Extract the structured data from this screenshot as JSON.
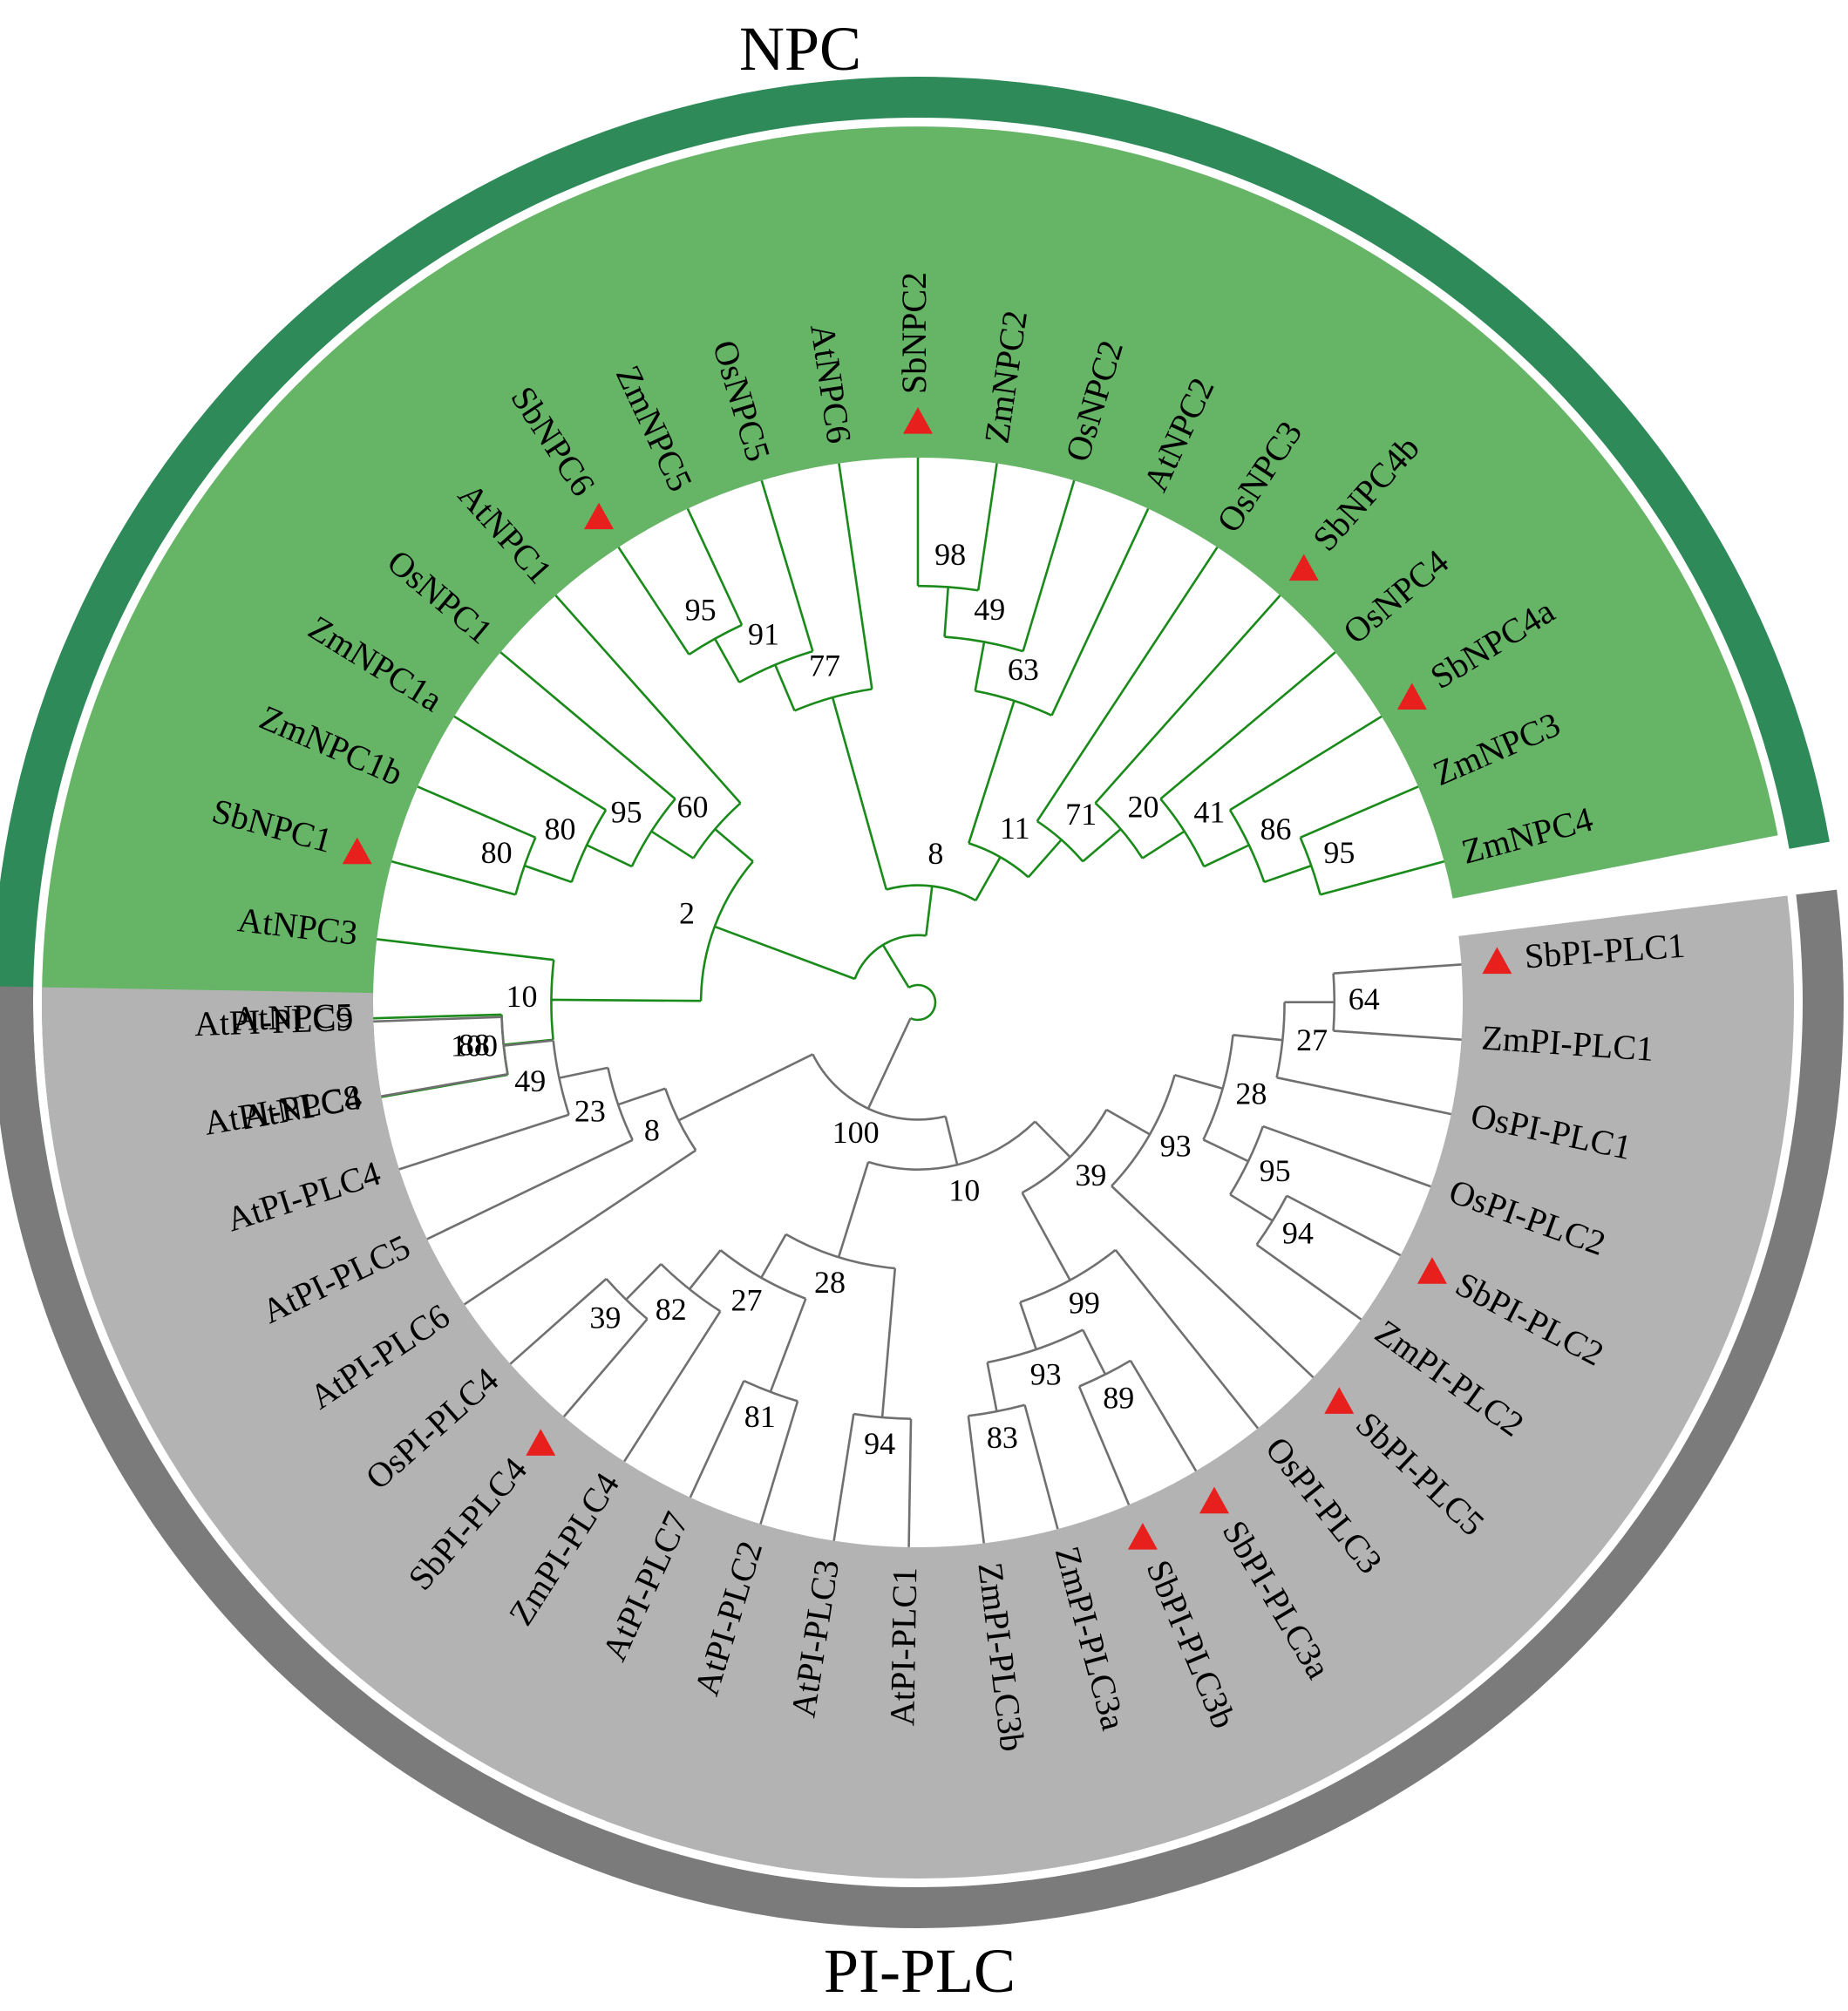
{
  "clades": [
    {
      "id": "npc",
      "title": "NPC",
      "fill": "#66b567",
      "band": "#2e8a59",
      "branch": "#1a8a1a"
    },
    {
      "id": "piplc",
      "title": "PI-PLC",
      "fill": "#b3b3b3",
      "band": "#7b7b7b",
      "branch": "#707070"
    }
  ],
  "marker_color": "#e8201d",
  "leaves": [
    {
      "label": "AtNPC4",
      "clade": "npc",
      "marked": false
    },
    {
      "label": "AtNPC5",
      "clade": "npc",
      "marked": false
    },
    {
      "label": "AtNPC3",
      "clade": "npc",
      "marked": false
    },
    {
      "label": "SbNPC1",
      "clade": "npc",
      "marked": true
    },
    {
      "label": "ZmNPC1b",
      "clade": "npc",
      "marked": false
    },
    {
      "label": "ZmNPC1a",
      "clade": "npc",
      "marked": false
    },
    {
      "label": "OsNPC1",
      "clade": "npc",
      "marked": false
    },
    {
      "label": "AtNPC1",
      "clade": "npc",
      "marked": false
    },
    {
      "label": "SbNPC6",
      "clade": "npc",
      "marked": true
    },
    {
      "label": "ZmNPC5",
      "clade": "npc",
      "marked": false
    },
    {
      "label": "OsNPC5",
      "clade": "npc",
      "marked": false
    },
    {
      "label": "AtNPC6",
      "clade": "npc",
      "marked": false
    },
    {
      "label": "SbNPC2",
      "clade": "npc",
      "marked": true
    },
    {
      "label": "ZmNPC2",
      "clade": "npc",
      "marked": false
    },
    {
      "label": "OsNPC2",
      "clade": "npc",
      "marked": false
    },
    {
      "label": "AtNPC2",
      "clade": "npc",
      "marked": false
    },
    {
      "label": "OsNPC3",
      "clade": "npc",
      "marked": false
    },
    {
      "label": "SbNPC4b",
      "clade": "npc",
      "marked": true
    },
    {
      "label": "OsNPC4",
      "clade": "npc",
      "marked": false
    },
    {
      "label": "SbNPC4a",
      "clade": "npc",
      "marked": true
    },
    {
      "label": "ZmNPC3",
      "clade": "npc",
      "marked": false
    },
    {
      "label": "ZmNPC4",
      "clade": "npc",
      "marked": false
    },
    {
      "label": "SbPI-PLC1",
      "clade": "piplc",
      "marked": true
    },
    {
      "label": "ZmPI-PLC1",
      "clade": "piplc",
      "marked": false
    },
    {
      "label": "OsPI-PLC1",
      "clade": "piplc",
      "marked": false
    },
    {
      "label": "OsPI-PLC2",
      "clade": "piplc",
      "marked": false
    },
    {
      "label": "SbPI-PLC2",
      "clade": "piplc",
      "marked": true
    },
    {
      "label": "ZmPI-PLC2",
      "clade": "piplc",
      "marked": false
    },
    {
      "label": "SbPI-PLC5",
      "clade": "piplc",
      "marked": true
    },
    {
      "label": "OsPI-PLC3",
      "clade": "piplc",
      "marked": false
    },
    {
      "label": "SbPI-PLC3a",
      "clade": "piplc",
      "marked": true
    },
    {
      "label": "SbPI-PLC3b",
      "clade": "piplc",
      "marked": true
    },
    {
      "label": "ZmPI-PLC3a",
      "clade": "piplc",
      "marked": false
    },
    {
      "label": "ZmPI-PLC3b",
      "clade": "piplc",
      "marked": false
    },
    {
      "label": "AtPI-PLC1",
      "clade": "piplc",
      "marked": false
    },
    {
      "label": "AtPI-PLC3",
      "clade": "piplc",
      "marked": false
    },
    {
      "label": "AtPI-PLC2",
      "clade": "piplc",
      "marked": false
    },
    {
      "label": "AtPI-PLC7",
      "clade": "piplc",
      "marked": false
    },
    {
      "label": "ZmPI-PLC4",
      "clade": "piplc",
      "marked": false
    },
    {
      "label": "SbPI-PLC4",
      "clade": "piplc",
      "marked": true
    },
    {
      "label": "OsPI-PLC4",
      "clade": "piplc",
      "marked": false
    },
    {
      "label": "AtPI-PLC6",
      "clade": "piplc",
      "marked": false
    },
    {
      "label": "AtPI-PLC5",
      "clade": "piplc",
      "marked": false
    },
    {
      "label": "AtPI-PLC4",
      "clade": "piplc",
      "marked": false
    },
    {
      "label": "AtPI-PLC8",
      "clade": "piplc",
      "marked": false
    },
    {
      "label": "AtPI-PLC9",
      "clade": "piplc",
      "marked": false
    }
  ],
  "tree": {
    "clade": "npc",
    "children": [
      {
        "clade": "npc",
        "children": [
          {
            "clade": "npc",
            "support": "2",
            "children": [
              {
                "clade": "npc",
                "support": "10",
                "children": [
                  {
                    "clade": "npc",
                    "support": "88",
                    "children": [
                      {
                        "leaf": "AtNPC4"
                      },
                      {
                        "leaf": "AtNPC5"
                      }
                    ]
                  },
                  {
                    "leaf": "AtNPC3"
                  }
                ]
              },
              {
                "clade": "npc",
                "support": "60",
                "children": [
                  {
                    "clade": "npc",
                    "support": "95",
                    "children": [
                      {
                        "clade": "npc",
                        "support": "80",
                        "children": [
                          {
                            "clade": "npc",
                            "support": "80",
                            "children": [
                              {
                                "leaf": "SbNPC1"
                              },
                              {
                                "leaf": "ZmNPC1b"
                              }
                            ]
                          },
                          {
                            "leaf": "ZmNPC1a"
                          }
                        ]
                      },
                      {
                        "leaf": "OsNPC1"
                      }
                    ]
                  },
                  {
                    "leaf": "AtNPC1"
                  }
                ]
              }
            ]
          },
          {
            "clade": "npc",
            "support": "8",
            "children": [
              {
                "clade": "npc",
                "support": "77",
                "children": [
                  {
                    "clade": "npc",
                    "support": "91",
                    "children": [
                      {
                        "clade": "npc",
                        "support": "95",
                        "children": [
                          {
                            "leaf": "SbNPC6"
                          },
                          {
                            "leaf": "ZmNPC5"
                          }
                        ]
                      },
                      {
                        "leaf": "OsNPC5"
                      }
                    ]
                  },
                  {
                    "leaf": "AtNPC6"
                  }
                ]
              },
              {
                "clade": "npc",
                "support": "11",
                "children": [
                  {
                    "clade": "npc",
                    "support": "63",
                    "children": [
                      {
                        "clade": "npc",
                        "support": "49",
                        "children": [
                          {
                            "clade": "npc",
                            "support": "98",
                            "children": [
                              {
                                "leaf": "SbNPC2"
                              },
                              {
                                "leaf": "ZmNPC2"
                              }
                            ]
                          },
                          {
                            "leaf": "OsNPC2"
                          }
                        ]
                      },
                      {
                        "leaf": "AtNPC2"
                      }
                    ]
                  },
                  {
                    "clade": "npc",
                    "support": "71",
                    "children": [
                      {
                        "leaf": "OsNPC3"
                      },
                      {
                        "clade": "npc",
                        "support": "20",
                        "children": [
                          {
                            "leaf": "SbNPC4b"
                          },
                          {
                            "clade": "npc",
                            "support": "41",
                            "children": [
                              {
                                "leaf": "OsNPC4"
                              },
                              {
                                "clade": "npc",
                                "support": "86",
                                "children": [
                                  {
                                    "leaf": "SbNPC4a"
                                  },
                                  {
                                    "clade": "npc",
                                    "support": "95",
                                    "children": [
                                      {
                                        "leaf": "ZmNPC3"
                                      },
                                      {
                                        "leaf": "ZmNPC4"
                                      }
                                    ]
                                  }
                                ]
                              }
                            ]
                          }
                        ]
                      }
                    ]
                  }
                ]
              }
            ]
          }
        ]
      },
      {
        "clade": "piplc",
        "support": "100",
        "children": [
          {
            "clade": "piplc",
            "support": "10",
            "children": [
              {
                "clade": "piplc",
                "support": "39",
                "children": [
                  {
                    "clade": "piplc",
                    "support": "93",
                    "children": [
                      {
                        "clade": "piplc",
                        "support": "28",
                        "children": [
                          {
                            "clade": "piplc",
                            "support": "27",
                            "children": [
                              {
                                "clade": "piplc",
                                "support": "64",
                                "children": [
                                  {
                                    "leaf": "SbPI-PLC1"
                                  },
                                  {
                                    "leaf": "ZmPI-PLC1"
                                  }
                                ]
                              },
                              {
                                "leaf": "OsPI-PLC1"
                              }
                            ]
                          },
                          {
                            "clade": "piplc",
                            "support": "95",
                            "children": [
                              {
                                "leaf": "OsPI-PLC2"
                              },
                              {
                                "clade": "piplc",
                                "support": "94",
                                "children": [
                                  {
                                    "leaf": "SbPI-PLC2"
                                  },
                                  {
                                    "leaf": "ZmPI-PLC2"
                                  }
                                ]
                              }
                            ]
                          }
                        ]
                      },
                      {
                        "leaf": "SbPI-PLC5"
                      }
                    ]
                  },
                  {
                    "clade": "piplc",
                    "support": "99",
                    "children": [
                      {
                        "leaf": "OsPI-PLC3"
                      },
                      {
                        "clade": "piplc",
                        "support": "93",
                        "children": [
                          {
                            "clade": "piplc",
                            "support": "89",
                            "children": [
                              {
                                "leaf": "SbPI-PLC3a"
                              },
                              {
                                "leaf": "SbPI-PLC3b"
                              }
                            ]
                          },
                          {
                            "clade": "piplc",
                            "support": "83",
                            "children": [
                              {
                                "leaf": "ZmPI-PLC3a"
                              },
                              {
                                "leaf": "ZmPI-PLC3b"
                              }
                            ]
                          }
                        ]
                      }
                    ]
                  }
                ]
              },
              {
                "clade": "piplc",
                "support": "28",
                "children": [
                  {
                    "clade": "piplc",
                    "support": "94",
                    "children": [
                      {
                        "leaf": "AtPI-PLC1"
                      },
                      {
                        "leaf": "AtPI-PLC3"
                      }
                    ]
                  },
                  {
                    "clade": "piplc",
                    "support": "27",
                    "children": [
                      {
                        "clade": "piplc",
                        "support": "81",
                        "children": [
                          {
                            "leaf": "AtPI-PLC2"
                          },
                          {
                            "leaf": "AtPI-PLC7"
                          }
                        ]
                      },
                      {
                        "clade": "piplc",
                        "support": "82",
                        "children": [
                          {
                            "leaf": "ZmPI-PLC4"
                          },
                          {
                            "clade": "piplc",
                            "support": "39",
                            "children": [
                              {
                                "leaf": "SbPI-PLC4"
                              },
                              {
                                "leaf": "OsPI-PLC4"
                              }
                            ]
                          }
                        ]
                      }
                    ]
                  }
                ]
              }
            ]
          },
          {
            "clade": "piplc",
            "support": "8",
            "children": [
              {
                "leaf": "AtPI-PLC6"
              },
              {
                "clade": "piplc",
                "support": "23",
                "children": [
                  {
                    "leaf": "AtPI-PLC5"
                  },
                  {
                    "clade": "piplc",
                    "support": "49",
                    "children": [
                      {
                        "leaf": "AtPI-PLC4"
                      },
                      {
                        "clade": "piplc",
                        "support": "100",
                        "children": [
                          {
                            "leaf": "AtPI-PLC8"
                          },
                          {
                            "leaf": "AtPI-PLC9"
                          }
                        ]
                      }
                    ]
                  }
                ]
              }
            ]
          }
        ]
      }
    ]
  }
}
